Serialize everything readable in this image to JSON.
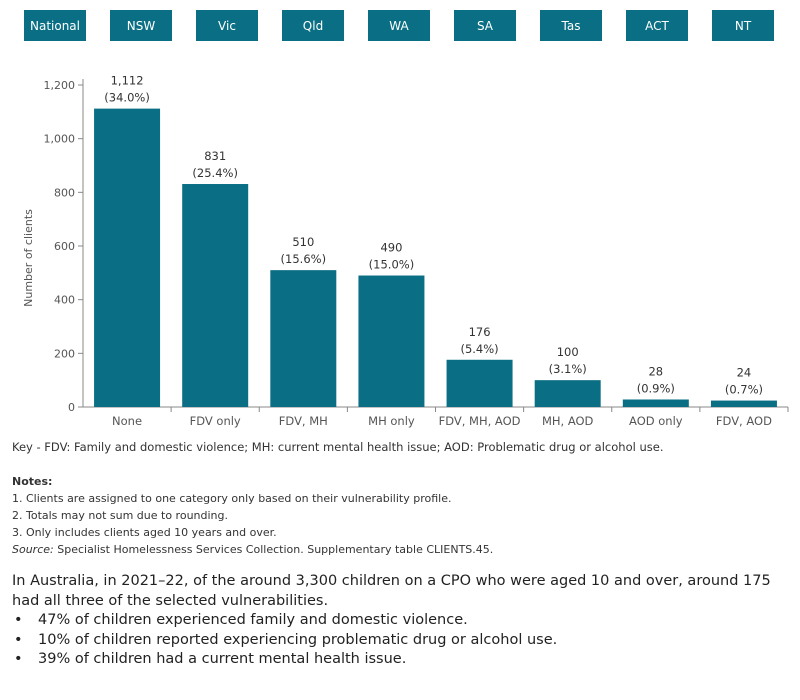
{
  "tabs": [
    "National",
    "NSW",
    "Vic",
    "Qld",
    "WA",
    "SA",
    "Tas",
    "ACT",
    "NT"
  ],
  "colors": {
    "bar": "#0a6f84",
    "tab": "#0a6f84",
    "tab_text": "#ffffff"
  },
  "chart_data": {
    "type": "bar",
    "categories": [
      "None",
      "FDV only",
      "FDV, MH",
      "MH only",
      "FDV, MH, AOD",
      "MH, AOD",
      "AOD only",
      "FDV, AOD"
    ],
    "values": [
      1112,
      831,
      510,
      490,
      176,
      100,
      28,
      24
    ],
    "percent_labels": [
      "(34.0%)",
      "(25.4%)",
      "(15.6%)",
      "(15.0%)",
      "(5.4%)",
      "(3.1%)",
      "(0.9%)",
      "(0.7%)"
    ],
    "value_labels": [
      "1,112",
      "831",
      "510",
      "490",
      "176",
      "100",
      "28",
      "24"
    ],
    "ylabel": "Number of clients",
    "xlabel": "",
    "ylim": [
      0,
      1200
    ],
    "yticks": [
      0,
      200,
      400,
      600,
      800,
      1000,
      1200
    ],
    "ytick_labels": [
      "0",
      "200",
      "400",
      "600",
      "800",
      "1,000",
      "1,200"
    ],
    "grid": false
  },
  "key_text": "Key - FDV: Family and domestic violence; MH: current mental health issue; AOD: Problematic drug or alcohol use.",
  "notes": {
    "heading": "Notes:",
    "items": [
      "1. Clients are assigned to one category only based on their vulnerability profile.",
      "2. Totals may not sum due to rounding.",
      "3. Only includes clients aged 10 years and over."
    ],
    "source_label": "Source:",
    "source_text": " Specialist Homelessness Services Collection. Supplementary table CLIENTS.45."
  },
  "summary": {
    "intro": "In Australia, in 2021–22, of the around 3,300 children on a CPO who were aged 10 and over, around 175 had all three of the selected vulnerabilities.",
    "bullets": [
      "47% of children experienced family and domestic violence.",
      "10% of children reported experiencing problematic drug or alcohol use.",
      "39% of children had a current mental health issue."
    ]
  }
}
